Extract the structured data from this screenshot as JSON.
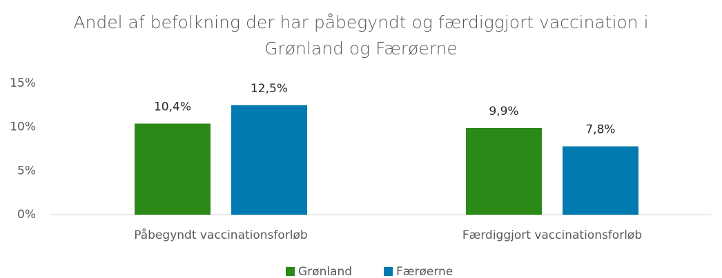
{
  "chart_data": {
    "type": "bar",
    "title": "Andel af befolkning der har påbegyndt og færdiggjort vaccination i Grønland og Færøerne",
    "categories": [
      "Påbegyndt vaccinationsforløb",
      "Færdiggjort vaccinationsforløb"
    ],
    "series": [
      {
        "name": "Grønland",
        "color": "#2b8a17",
        "values": [
          10.4,
          9.9
        ],
        "value_labels": [
          "10,4%",
          "9,9%"
        ]
      },
      {
        "name": "Færøerne",
        "color": "#007ab0",
        "values": [
          12.5,
          7.8
        ],
        "value_labels": [
          "12,5%",
          "7,8%"
        ]
      }
    ],
    "ylim": [
      0,
      15
    ],
    "yticks": [
      {
        "value": 0,
        "label": "0%"
      },
      {
        "value": 5,
        "label": "5%"
      },
      {
        "value": 10,
        "label": "10%"
      },
      {
        "value": 15,
        "label": "15%"
      }
    ],
    "grid": false,
    "legend": "bottom"
  }
}
